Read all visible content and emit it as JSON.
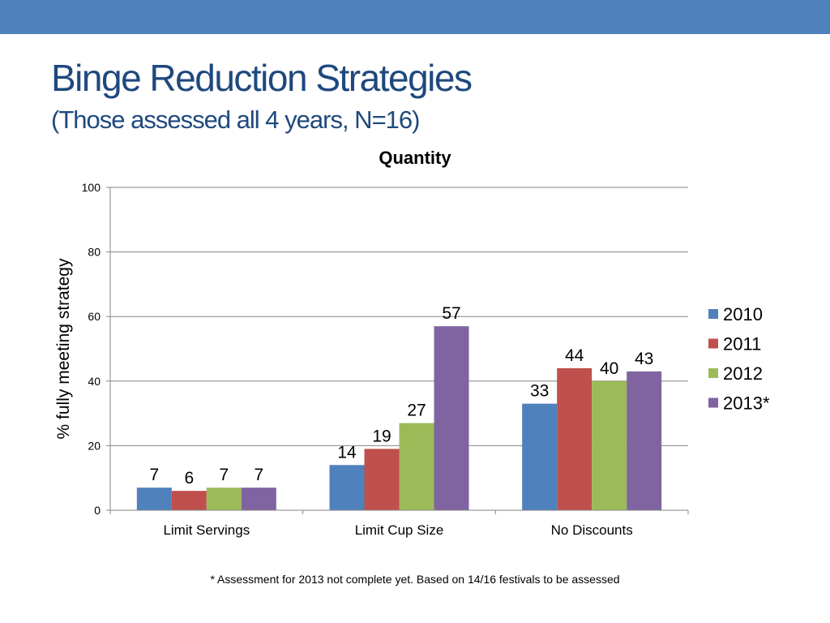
{
  "slide": {
    "title": "Binge Reduction Strategies",
    "subtitle": "(Those assessed all 4 years, N=16)",
    "footnote": "* Assessment for 2013 not complete yet. Based on 14/16 festivals to be assessed",
    "accent_color": "#4f81bd",
    "title_color": "#1f497d"
  },
  "chart_data": {
    "type": "bar",
    "title": "Quantity",
    "xlabel": "",
    "ylabel": "% fully meeting strategy",
    "categories": [
      "Limit Servings",
      "Limit Cup Size",
      "No Discounts"
    ],
    "ylim": [
      0,
      100
    ],
    "yticks": [
      0,
      20,
      40,
      60,
      80,
      100
    ],
    "grid": true,
    "legend_position": "right",
    "series": [
      {
        "name": "2010",
        "color": "#4f81bd",
        "values": [
          7,
          14,
          33
        ],
        "labels": [
          "7",
          "14",
          "33"
        ]
      },
      {
        "name": "2011",
        "color": "#c0504d",
        "values": [
          6,
          19,
          44
        ],
        "labels": [
          "6",
          "19",
          "44"
        ]
      },
      {
        "name": "2012",
        "color": "#9bbb59",
        "values": [
          7,
          27,
          40
        ],
        "labels": [
          "7",
          "27",
          "40"
        ]
      },
      {
        "name": "2013*",
        "color": "#8064a2",
        "values": [
          7,
          57,
          43
        ],
        "labels": [
          "7",
          "57",
          "43"
        ]
      }
    ]
  }
}
